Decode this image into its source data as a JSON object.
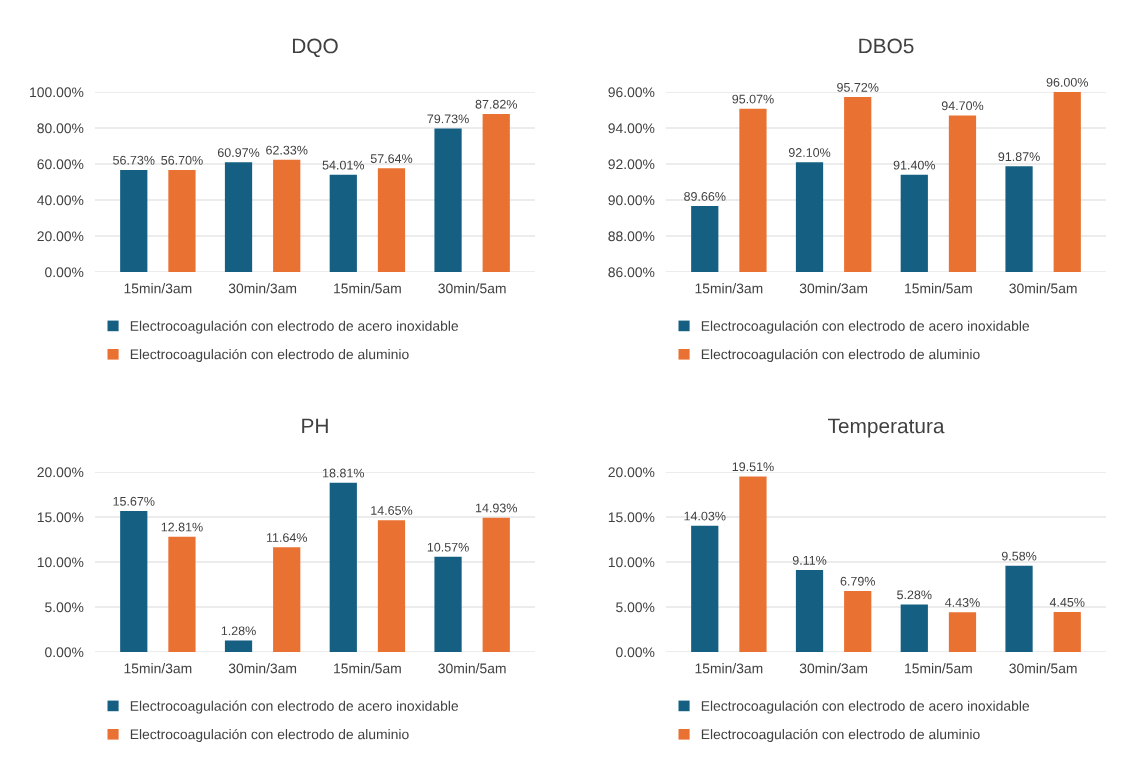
{
  "chart_data": [
    {
      "type": "bar",
      "title": "DQO",
      "categories": [
        "15min/3am",
        "30min/3am",
        "15min/5am",
        "30min/5am"
      ],
      "series": [
        {
          "name": "Electrocoagulación con electrodo de acero inoxidable",
          "color": "#156082",
          "values": [
            56.73,
            60.97,
            54.01,
            79.73
          ],
          "value_labels": [
            "56.73%",
            "60.97%",
            "54.01%",
            "79.73%"
          ]
        },
        {
          "name": "Electrocoagulación con electrodo de aluminio",
          "color": "#e97132",
          "values": [
            56.7,
            62.33,
            57.64,
            87.82
          ],
          "value_labels": [
            "56.70%",
            "62.33%",
            "57.64%",
            "87.82%"
          ]
        }
      ],
      "ylim": [
        0,
        100
      ],
      "yticks": [
        {
          "value": 0,
          "label": "0.00%"
        },
        {
          "value": 20,
          "label": "20.00%"
        },
        {
          "value": 40,
          "label": "40.00%"
        },
        {
          "value": 60,
          "label": "60.00%"
        },
        {
          "value": 80,
          "label": "80.00%"
        },
        {
          "value": 100,
          "label": "100.00%"
        }
      ],
      "grid": "y",
      "legend": "bottom"
    },
    {
      "type": "bar",
      "title": "DBO5",
      "categories": [
        "15min/3am",
        "30min/3am",
        "15min/5am",
        "30min/5am"
      ],
      "series": [
        {
          "name": "Electrocoagulación con electrodo de acero inoxidable",
          "color": "#156082",
          "values": [
            89.66,
            92.1,
            91.4,
            91.87
          ],
          "value_labels": [
            "89.66%",
            "92.10%",
            "91.40%",
            "91.87%"
          ]
        },
        {
          "name": "Electrocoagulación con electrodo de aluminio",
          "color": "#e97132",
          "values": [
            95.07,
            95.72,
            94.7,
            96.0
          ],
          "value_labels": [
            "95.07%",
            "95.72%",
            "94.70%",
            "96.00%"
          ]
        }
      ],
      "ylim": [
        86,
        96
      ],
      "yticks": [
        {
          "value": 86,
          "label": "86.00%"
        },
        {
          "value": 88,
          "label": "88.00%"
        },
        {
          "value": 90,
          "label": "90.00%"
        },
        {
          "value": 92,
          "label": "92.00%"
        },
        {
          "value": 94,
          "label": "94.00%"
        },
        {
          "value": 96,
          "label": "96.00%"
        }
      ],
      "grid": "y",
      "legend": "bottom"
    },
    {
      "type": "bar",
      "title": "PH",
      "categories": [
        "15min/3am",
        "30min/3am",
        "15min/5am",
        "30min/5am"
      ],
      "series": [
        {
          "name": "Electrocoagulación con electrodo de acero inoxidable",
          "color": "#156082",
          "values": [
            15.67,
            1.28,
            18.81,
            10.57
          ],
          "value_labels": [
            "15.67%",
            "1.28%",
            "18.81%",
            "10.57%"
          ]
        },
        {
          "name": "Electrocoagulación con electrodo de aluminio",
          "color": "#e97132",
          "values": [
            12.81,
            11.64,
            14.65,
            14.93
          ],
          "value_labels": [
            "12.81%",
            "11.64%",
            "14.65%",
            "14.93%"
          ]
        }
      ],
      "ylim": [
        0,
        20
      ],
      "yticks": [
        {
          "value": 0,
          "label": "0.00%"
        },
        {
          "value": 5,
          "label": "5.00%"
        },
        {
          "value": 10,
          "label": "10.00%"
        },
        {
          "value": 15,
          "label": "15.00%"
        },
        {
          "value": 20,
          "label": "20.00%"
        }
      ],
      "grid": "y",
      "legend": "bottom"
    },
    {
      "type": "bar",
      "title": "Temperatura",
      "categories": [
        "15min/3am",
        "30min/3am",
        "15min/5am",
        "30min/5am"
      ],
      "series": [
        {
          "name": "Electrocoagulación con electrodo de acero inoxidable",
          "color": "#156082",
          "values": [
            14.03,
            9.11,
            5.28,
            9.58
          ],
          "value_labels": [
            "14.03%",
            "9.11%",
            "5.28%",
            "9.58%"
          ]
        },
        {
          "name": "Electrocoagulación con electrodo de aluminio",
          "color": "#e97132",
          "values": [
            19.51,
            6.79,
            4.43,
            4.45
          ],
          "value_labels": [
            "19.51%",
            "6.79%",
            "4.43%",
            "4.45%"
          ]
        }
      ],
      "ylim": [
        0,
        20
      ],
      "yticks": [
        {
          "value": 0,
          "label": "0.00%"
        },
        {
          "value": 5,
          "label": "5.00%"
        },
        {
          "value": 10,
          "label": "10.00%"
        },
        {
          "value": 15,
          "label": "15.00%"
        },
        {
          "value": 20,
          "label": "20.00%"
        }
      ],
      "grid": "y",
      "legend": "bottom"
    }
  ]
}
